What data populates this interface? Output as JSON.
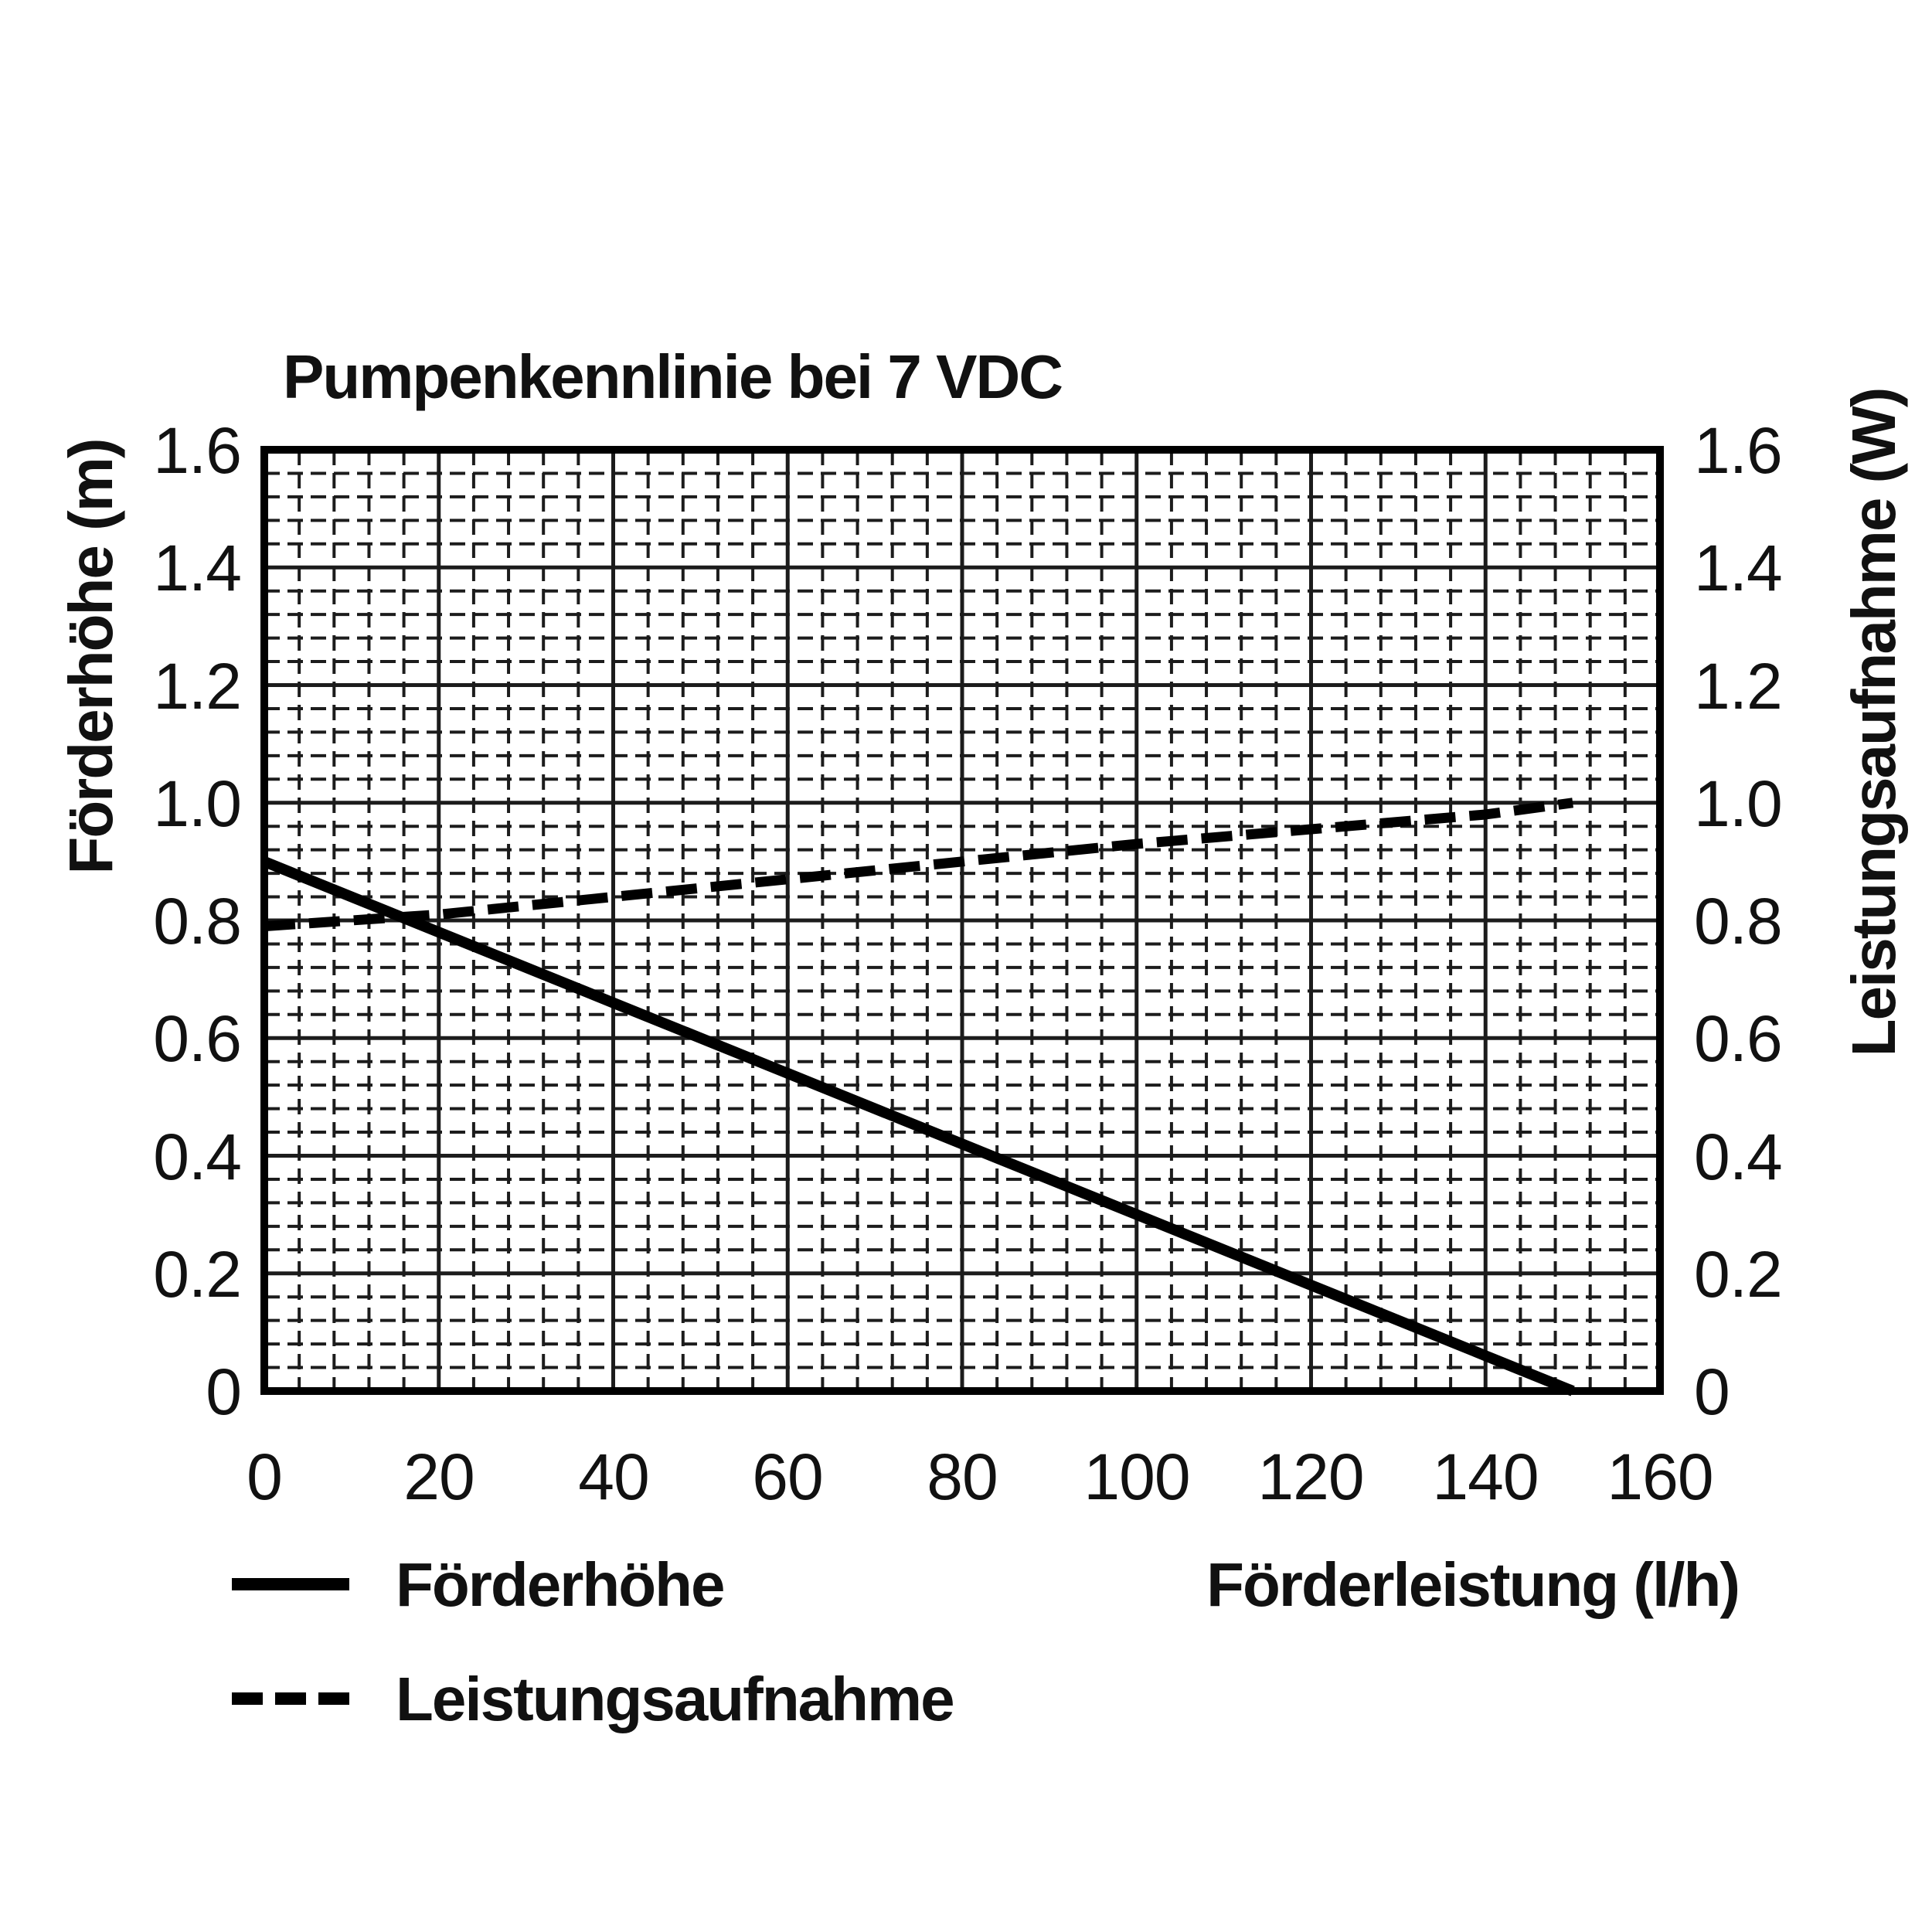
{
  "title": "Pumpenkennlinie bei 7 VDC",
  "axes": {
    "y_left_label": "Förderhöhe (m)",
    "y_right_label": "Leistungsaufnahme (W)",
    "x_label": "Förderleistung (l/h)",
    "y_left_ticks": [
      "1.6",
      "1.4",
      "1.2",
      "1.0",
      "0.8",
      "0.6",
      "0.4",
      "0.2",
      "0"
    ],
    "y_right_ticks": [
      "1.6",
      "1.4",
      "1.2",
      "1.0",
      "0.8",
      "0.6",
      "0.4",
      "0.2",
      "0"
    ],
    "x_ticks": [
      "0",
      "20",
      "40",
      "60",
      "80",
      "100",
      "120",
      "140",
      "160"
    ]
  },
  "legend": [
    {
      "label": "Förderhöhe",
      "style": "solid"
    },
    {
      "label": "Leistungsaufnahme",
      "style": "dashed"
    }
  ],
  "chart_data": {
    "type": "line",
    "title": "Pumpenkennlinie bei 7 VDC",
    "xlabel": "Förderleistung (l/h)",
    "ylabel_left": "Förderhöhe (m)",
    "ylabel_right": "Leistungsaufnahme (W)",
    "xlim": [
      0,
      160
    ],
    "ylim_left": [
      0,
      1.6
    ],
    "ylim_right": [
      0,
      1.6
    ],
    "x_major_step": 20,
    "x_minor_step": 4,
    "y_major_step": 0.2,
    "y_minor_step": 0.04,
    "grid": "major solid, minor dashed crosshatch",
    "legend_position": "bottom-left",
    "series": [
      {
        "name": "Förderhöhe",
        "unit": "m",
        "axis": "left",
        "style": "solid",
        "points": [
          [
            0,
            0.9
          ],
          [
            20,
            0.78
          ],
          [
            40,
            0.66
          ],
          [
            60,
            0.54
          ],
          [
            80,
            0.42
          ],
          [
            100,
            0.3
          ],
          [
            120,
            0.18
          ],
          [
            140,
            0.06
          ],
          [
            150,
            0
          ]
        ]
      },
      {
        "name": "Leistungsaufnahme",
        "unit": "W",
        "axis": "right",
        "style": "dashed",
        "points": [
          [
            0,
            0.79
          ],
          [
            20,
            0.81
          ],
          [
            40,
            0.84
          ],
          [
            60,
            0.87
          ],
          [
            80,
            0.9
          ],
          [
            100,
            0.93
          ],
          [
            120,
            0.955
          ],
          [
            140,
            0.98
          ],
          [
            150,
            1.0
          ]
        ]
      }
    ]
  }
}
